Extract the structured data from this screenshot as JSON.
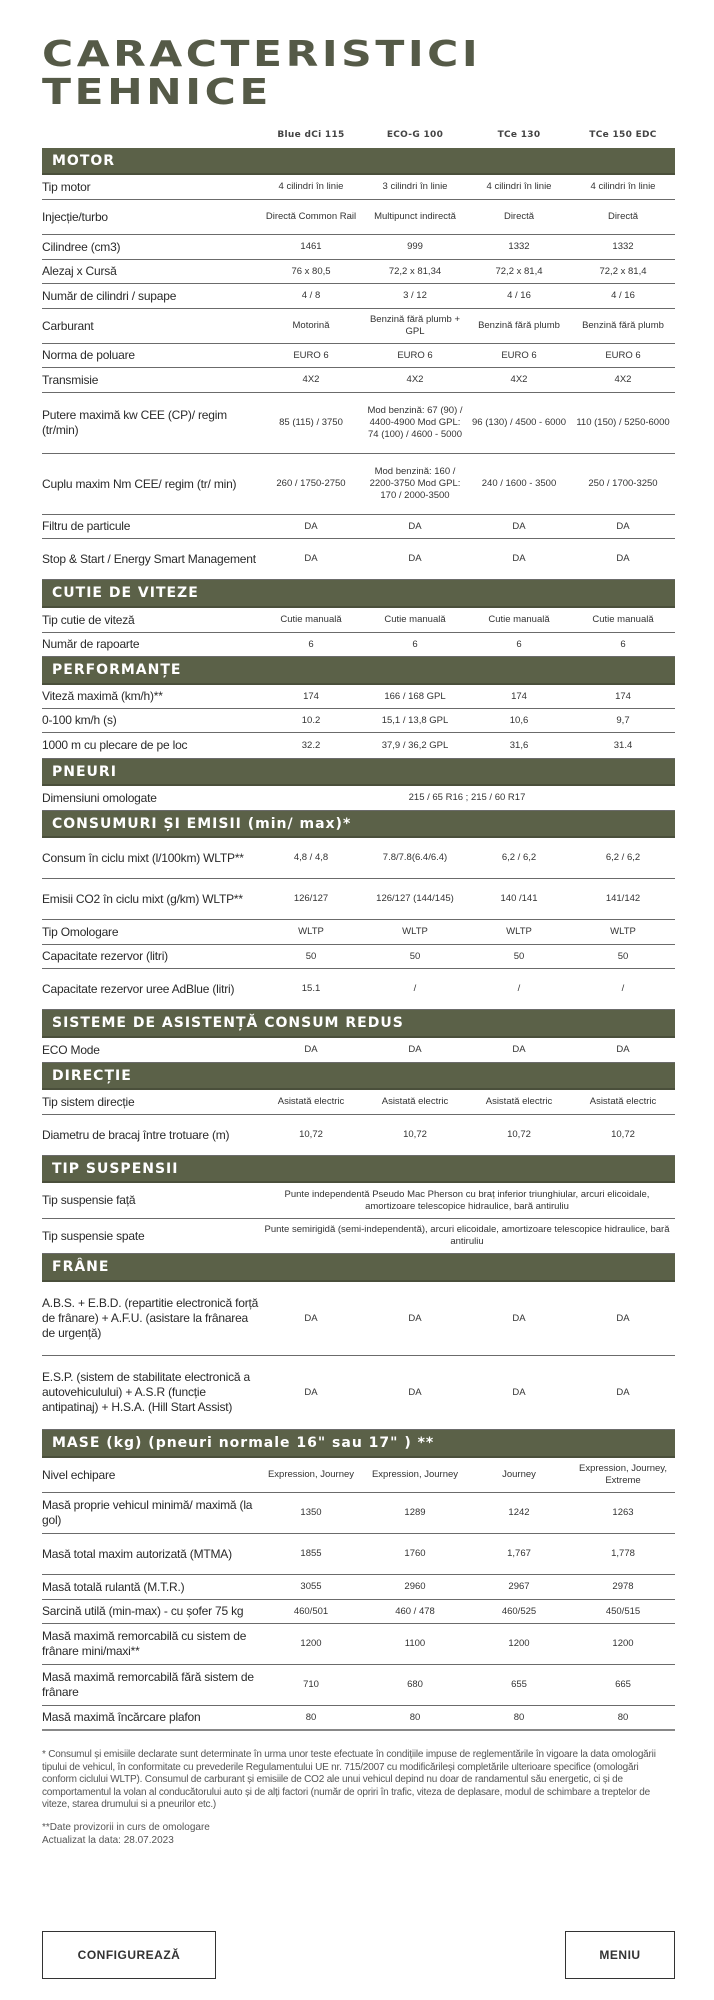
{
  "title_line1": "CARACTERISTICI",
  "title_line2": "TEHNICE",
  "columns": [
    "Blue dCi 115",
    "ECO-G 100",
    "TCe 130",
    "TCe 150 EDC"
  ],
  "colors": {
    "band": "#5b6148",
    "title": "#555a47"
  },
  "sections": [
    {
      "title": "MOTOR",
      "rows": [
        {
          "label": "Tip motor",
          "values": [
            "4 cilindri în linie",
            "3 cilindri în linie",
            "4 cilindri în linie",
            "4 cilindri în linie"
          ]
        },
        {
          "label": "Injecție/turbo",
          "values": [
            "Directă Common Rail",
            "Multipunct indirectă",
            "Directă",
            "Directă"
          ]
        },
        {
          "label": "Cilindree (cm3)",
          "values": [
            "1461",
            "999",
            "1332",
            "1332"
          ]
        },
        {
          "label": "Alezaj x Cursă",
          "values": [
            "76 x 80,5",
            "72,2 x 81,34",
            "72,2 x 81,4",
            "72,2 x 81,4"
          ]
        },
        {
          "label": "Număr de cilindri / supape",
          "values": [
            "4 / 8",
            "3 / 12",
            "4 / 16",
            "4 / 16"
          ]
        },
        {
          "label": "Carburant",
          "values": [
            "Motorină",
            "Benzină fără plumb + GPL",
            "Benzină fără plumb",
            "Benzină fără plumb"
          ]
        },
        {
          "label": "Norma de poluare",
          "values": [
            "EURO 6",
            "EURO 6",
            "EURO 6",
            "EURO 6"
          ]
        },
        {
          "label": "Transmisie",
          "values": [
            "4X2",
            "4X2",
            "4X2",
            "4X2"
          ]
        },
        {
          "label": "Putere maximă kw CEE (CP)/ regim (tr/min)",
          "values": [
            "85 (115) / 3750",
            "Mod benzină: 67 (90) / 4400-4900 Mod GPL: 74 (100) / 4600 - 5000",
            "96 (130) / 4500 - 6000",
            "110 (150) / 5250-6000"
          ]
        },
        {
          "label": "Cuplu maxim Nm CEE/ regim (tr/ min)",
          "values": [
            "260 / 1750-2750",
            "Mod benzină: 160 / 2200-3750 Mod GPL: 170 / 2000-3500",
            "240 / 1600 - 3500",
            "250 / 1700-3250"
          ]
        },
        {
          "label": "Filtru de particule",
          "values": [
            "DA",
            "DA",
            "DA",
            "DA"
          ]
        },
        {
          "label": "Stop & Start / Energy Smart Management",
          "values": [
            "DA",
            "DA",
            "DA",
            "DA"
          ]
        }
      ]
    },
    {
      "title": "CUTIE DE VITEZE",
      "rows": [
        {
          "label": "Tip cutie de viteză",
          "values": [
            "Cutie manuală",
            "Cutie manuală",
            "Cutie manuală",
            "Cutie manuală"
          ]
        },
        {
          "label": "Număr de rapoarte",
          "values": [
            "6",
            "6",
            "6",
            "6"
          ]
        }
      ]
    },
    {
      "title": "PERFORMANȚE",
      "rows": [
        {
          "label": "Viteză maximă (km/h)**",
          "values": [
            "174",
            "166 / 168 GPL",
            "174",
            "174"
          ]
        },
        {
          "label": "0-100 km/h (s)",
          "values": [
            "10.2",
            "15,1 / 13,8 GPL",
            "10,6",
            "9,7"
          ]
        },
        {
          "label": "1000 m cu plecare de pe loc",
          "values": [
            "32.2",
            "37,9 / 36,2 GPL",
            "31,6",
            "31.4"
          ]
        }
      ]
    },
    {
      "title": "PNEURI",
      "rows": [
        {
          "label": "Dimensiuni omologate",
          "span": "215 / 65 R16 ; 215 / 60 R17"
        }
      ]
    },
    {
      "title": "CONSUMURI ȘI EMISII (min/ max)*",
      "rows": [
        {
          "label": "Consum în ciclu mixt (l/100km) WLTP**",
          "values": [
            "4,8 / 4,8",
            "7.8/7.8(6.4/6.4)",
            "6,2 / 6,2",
            "6,2 / 6,2"
          ]
        },
        {
          "label": "Emisii CO2 în ciclu mixt (g/km) WLTP**",
          "values": [
            "126/127",
            "126/127 (144/145)",
            "140 /141",
            "141/142"
          ]
        },
        {
          "label": "Tip Omologare",
          "values": [
            "WLTP",
            "WLTP",
            "WLTP",
            "WLTP"
          ]
        },
        {
          "label": "Capacitate rezervor (litri)",
          "values": [
            "50",
            "50",
            "50",
            "50"
          ]
        },
        {
          "label": "Capacitate rezervor uree AdBlue (litri)",
          "values": [
            "15.1",
            "/",
            "/",
            "/"
          ]
        }
      ]
    },
    {
      "title": "SISTEME DE ASISTENȚĂ CONSUM REDUS",
      "rows": [
        {
          "label": "ECO Mode",
          "values": [
            "DA",
            "DA",
            "DA",
            "DA"
          ]
        }
      ]
    },
    {
      "title": "DIRECȚIE",
      "rows": [
        {
          "label": "Tip sistem direcție",
          "values": [
            "Asistată electric",
            "Asistată electric",
            "Asistată electric",
            "Asistată electric"
          ]
        },
        {
          "label": "Diametru de bracaj între trotuare (m)",
          "values": [
            "10,72",
            "10,72",
            "10,72",
            "10,72"
          ]
        }
      ]
    },
    {
      "title": "TIP SUSPENSII",
      "rows": [
        {
          "label": "Tip suspensie față",
          "span": "Punte independentă Pseudo Mac Pherson cu braț inferior triunghiular, arcuri elicoidale, amortizoare telescopice hidraulice, bară antiruliu"
        },
        {
          "label": "Tip suspensie spate",
          "span": "Punte semirigidă (semi-independentă), arcuri elicoidale, amortizoare telescopice hidraulice, bară antiruliu"
        }
      ]
    },
    {
      "title": "FRÂNE",
      "rows": [
        {
          "label": "A.B.S. + E.B.D. (repartitie electronică forță de frânare) + A.F.U. (asistare la frânarea de urgență)",
          "values": [
            "DA",
            "DA",
            "DA",
            "DA"
          ]
        },
        {
          "label": "E.S.P. (sistem de stabilitate electronică a autovehiculului) + A.S.R (funcție antipatinaj) + H.S.A. (Hill Start Assist)",
          "values": [
            "DA",
            "DA",
            "DA",
            "DA"
          ]
        }
      ]
    },
    {
      "title": "MASE (kg)  (pneuri normale 16\" sau 17\" ) **",
      "rows": [
        {
          "label": "Nivel echipare",
          "values": [
            "Expression, Journey",
            "Expression, Journey",
            "Journey",
            "Expression, Journey, Extreme"
          ]
        },
        {
          "label": "Masă proprie vehicul minimă/ maximă (la gol)",
          "values": [
            "1350",
            "1289",
            "1242",
            "1263"
          ]
        },
        {
          "label": "Masă total maxim autorizată (MTMA)",
          "values": [
            "1855",
            "1760",
            "1,767",
            "1,778"
          ]
        },
        {
          "label": "Masă totală rulantă  (M.T.R.)",
          "values": [
            "3055",
            "2960",
            "2967",
            "2978"
          ]
        },
        {
          "label": "Sarcină utilă (min-max) - cu șofer 75 kg",
          "values": [
            "460/501",
            "460 / 478",
            "460/525",
            "450/515"
          ]
        },
        {
          "label": "Masă maximă remorcabilă cu sistem de frânare mini/maxi**",
          "values": [
            "1200",
            "1100",
            "1200",
            "1200"
          ]
        },
        {
          "label": "Masă maximă remorcabilă fără sistem de frânare",
          "values": [
            "710",
            "680",
            "655",
            "665"
          ]
        },
        {
          "label": "Masă maximă încărcare plafon",
          "values": [
            "80",
            "80",
            "80",
            "80"
          ]
        }
      ]
    }
  ],
  "footnote": "* Consumul și emisiile declarate sunt determinate în urma unor teste efectuate în condițiile impuse de reglementările în vigoare la data omologării tipului de vehicul, în conformitate cu prevederile Regulamentului UE nr. 715/2007 cu modificărileși completările ulterioare specifice (omologări conform ciclului WLTP). Consumul de carburant și emisiile de CO2 ale unui vehicul depind nu doar de randamentul său energetic, ci și de comportamentul la volan al conducătorului auto și de alți factori (număr de opriri în trafic, viteza de deplasare, modul de schimbare a treptelor de viteze, starea drumului si a pneurilor etc.)",
  "provisional_note": "**Date provizorii in curs de omologare",
  "updated": "Actualizat la data: 28.07.2023",
  "buttons": {
    "configure": "CONFIGUREAZĂ",
    "menu": "MENIU"
  }
}
